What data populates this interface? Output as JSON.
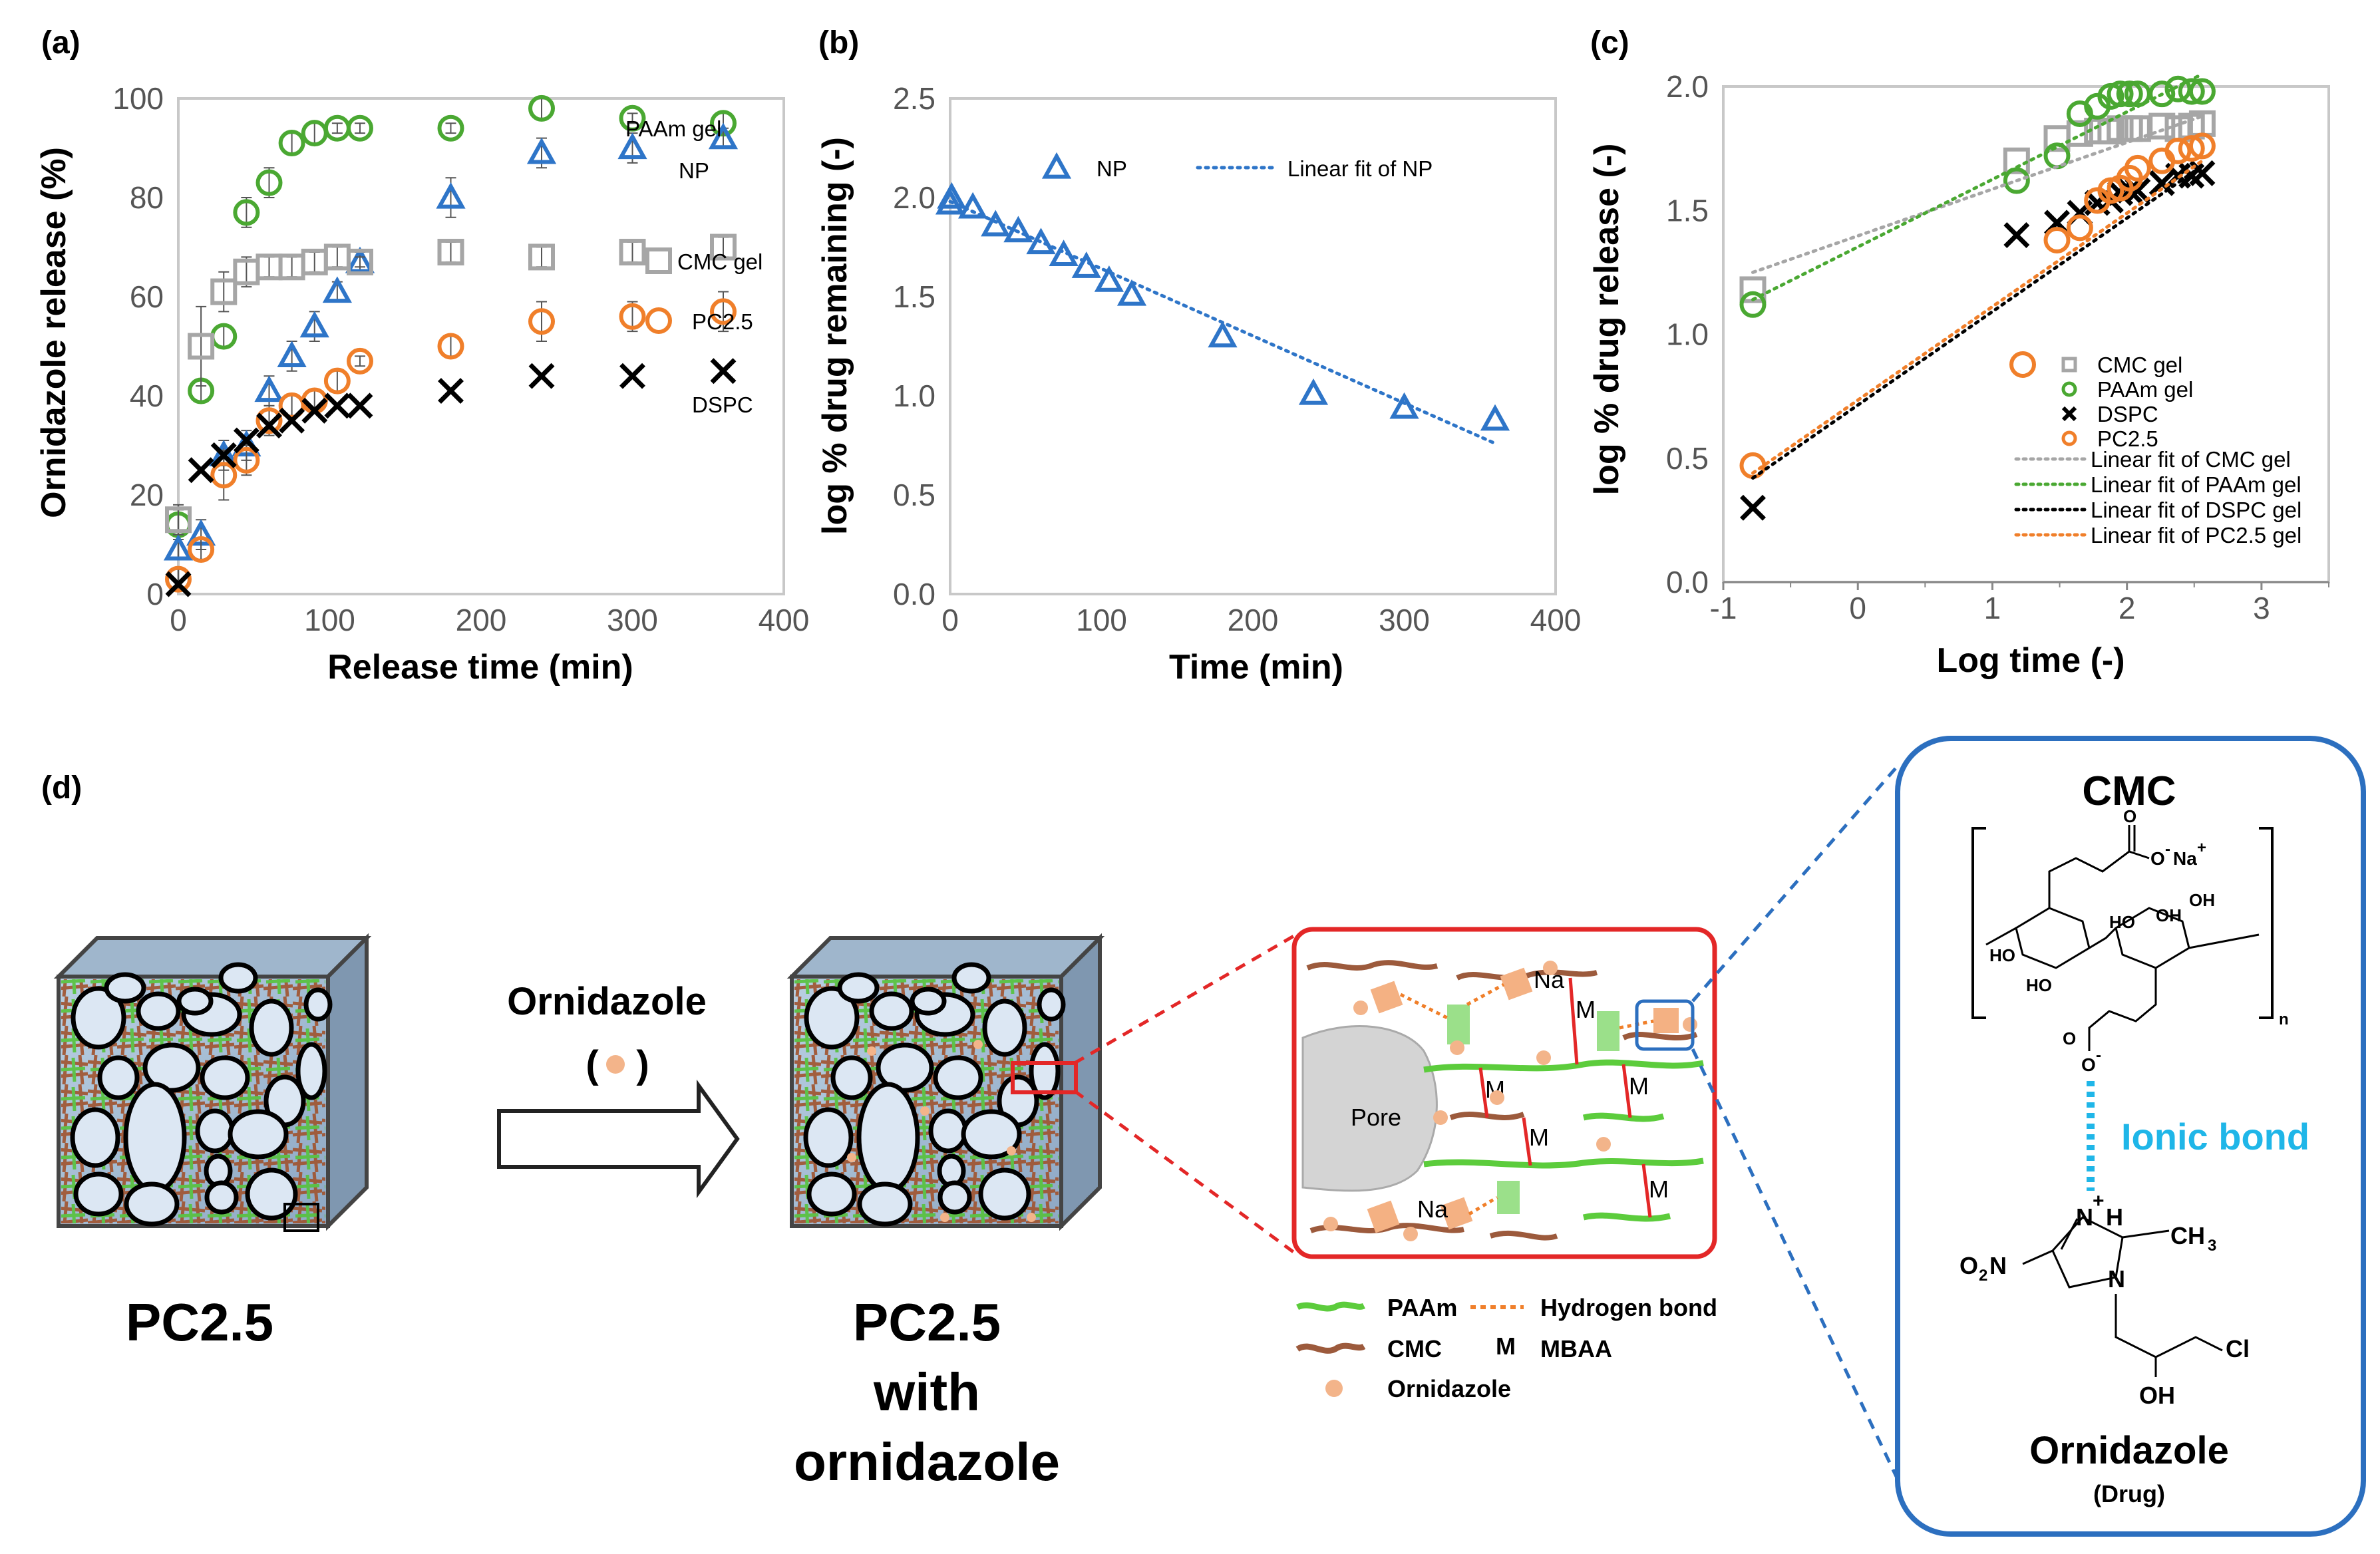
{
  "panels": {
    "a": "(a)",
    "b": "(b)",
    "c": "(c)",
    "d": "(d)"
  },
  "colors": {
    "cmc": "#a6a6a6",
    "paam": "#4aa832",
    "np": "#2e75c8",
    "pc25": "#f07f2a",
    "dspc": "#000000",
    "ionic": "#1fb6e8",
    "frame_red": "#e32727",
    "frame_blue": "#2c6fbf"
  },
  "chart_data": [
    {
      "id": "a",
      "type": "scatter",
      "xlabel": "Release time (min)",
      "ylabel": "Ornidazole release (%)",
      "xlim": [
        0,
        400
      ],
      "ylim": [
        0,
        100
      ],
      "xticks": [
        "0",
        "100",
        "200",
        "300",
        "400"
      ],
      "yticks": [
        "0",
        "20",
        "40",
        "60",
        "80",
        "100"
      ],
      "grid": false,
      "series": [
        {
          "name": "PAAm gel",
          "label": "PAAm gel",
          "marker": "circle",
          "color": "#4aa832",
          "x": [
            0,
            15,
            30,
            45,
            60,
            75,
            90,
            105,
            120,
            180,
            240,
            300,
            360
          ],
          "y": [
            14,
            41,
            52,
            77,
            83,
            91,
            93,
            94,
            94,
            94,
            98,
            96,
            95
          ],
          "err": [
            3,
            2,
            2,
            3,
            3,
            2,
            2,
            1,
            1,
            1,
            2,
            1,
            2
          ]
        },
        {
          "name": "NP",
          "label": "NP",
          "marker": "triangle",
          "color": "#2e75c8",
          "x": [
            0,
            15,
            30,
            45,
            60,
            75,
            90,
            105,
            120,
            180,
            240,
            300,
            360
          ],
          "y": [
            9,
            12,
            28,
            30,
            41,
            48,
            54,
            61,
            67,
            80,
            89,
            90,
            92
          ],
          "err": [
            2,
            3,
            3,
            3,
            3,
            3,
            3,
            2,
            2,
            4,
            3,
            3,
            2
          ]
        },
        {
          "name": "CMC gel",
          "label": "CMC gel",
          "marker": "square",
          "color": "#a6a6a6",
          "x": [
            0,
            15,
            30,
            45,
            60,
            75,
            90,
            105,
            120,
            180,
            240,
            300,
            360
          ],
          "y": [
            15,
            50,
            61,
            65,
            66,
            66,
            67,
            68,
            67,
            69,
            68,
            69,
            70
          ],
          "err": [
            3,
            8,
            4,
            3,
            2,
            2,
            2,
            2,
            1,
            2,
            2,
            2,
            2
          ]
        },
        {
          "name": "PC2.5",
          "label": "PC2.5",
          "marker": "circle",
          "color": "#f07f2a",
          "x": [
            0,
            15,
            30,
            45,
            60,
            75,
            90,
            105,
            120,
            180,
            240,
            300,
            360
          ],
          "y": [
            3,
            9,
            24,
            27,
            35,
            38,
            39,
            43,
            47,
            50,
            55,
            56,
            57
          ],
          "err": [
            2,
            2,
            5,
            3,
            3,
            2,
            2,
            2,
            1,
            2,
            4,
            3,
            4
          ]
        },
        {
          "name": "DSPC",
          "label": "DSPC",
          "marker": "cross",
          "color": "#000000",
          "x": [
            0,
            15,
            30,
            45,
            60,
            75,
            90,
            105,
            120,
            180,
            240,
            300,
            360
          ],
          "y": [
            2,
            25,
            28,
            31,
            34,
            35,
            37,
            38,
            38,
            41,
            44,
            44,
            45
          ],
          "err": [
            0,
            0,
            0,
            0,
            0,
            0,
            0,
            0,
            0,
            0,
            0,
            0,
            0
          ]
        }
      ]
    },
    {
      "id": "b",
      "type": "scatter",
      "xlabel": "Time (min)",
      "ylabel": "log % drug remaining (-)",
      "xlim": [
        0,
        400
      ],
      "ylim": [
        0,
        2.5
      ],
      "xticks": [
        "0",
        "100",
        "200",
        "300",
        "400"
      ],
      "yticks": [
        "0.0",
        "0.5",
        "1.0",
        "1.5",
        "2.0",
        "2.5"
      ],
      "grid": false,
      "legend": [
        "NP",
        "Linear fit of NP"
      ],
      "series": [
        {
          "name": "NP",
          "marker": "triangle",
          "color": "#2e75c8",
          "x": [
            0,
            1,
            15,
            30,
            45,
            60,
            75,
            90,
            105,
            120,
            180,
            240,
            300,
            360
          ],
          "y": [
            1.97,
            2.0,
            1.95,
            1.86,
            1.83,
            1.77,
            1.71,
            1.65,
            1.58,
            1.51,
            1.3,
            1.01,
            0.94,
            0.88
          ]
        },
        {
          "name": "Linear fit of NP",
          "type": "line",
          "style": "dotted",
          "color": "#2e75c8",
          "x": [
            0,
            360
          ],
          "y": [
            1.98,
            0.76
          ]
        }
      ]
    },
    {
      "id": "c",
      "type": "scatter",
      "xlabel": "Log time (-)",
      "ylabel": "log % drug release (-)",
      "xlim": [
        -1,
        3.5
      ],
      "ylim": [
        0,
        2.0
      ],
      "xticks": [
        "-1",
        "0",
        "1",
        "2",
        "3"
      ],
      "yticks": [
        "0.0",
        "0.5",
        "1.0",
        "1.5",
        "2.0"
      ],
      "grid": false,
      "legend": [
        "CMC gel",
        "PAAm gel",
        "DSPC",
        "PC2.5",
        "Linear fit of CMC gel",
        "Linear fit of PAAm gel",
        "Linear fit of DSPC gel",
        "Linear fit of PC2.5 gel"
      ],
      "series": [
        {
          "name": "CMC gel",
          "marker": "square",
          "color": "#a6a6a6",
          "x": [
            -0.78,
            1.18,
            1.48,
            1.65,
            1.78,
            1.88,
            1.95,
            2.02,
            2.08,
            2.26,
            2.38,
            2.48,
            2.56
          ],
          "y": [
            1.18,
            1.7,
            1.79,
            1.81,
            1.82,
            1.82,
            1.83,
            1.83,
            1.83,
            1.84,
            1.83,
            1.84,
            1.85
          ]
        },
        {
          "name": "PAAm gel",
          "marker": "circle",
          "color": "#4aa832",
          "x": [
            -0.78,
            1.18,
            1.48,
            1.65,
            1.78,
            1.88,
            1.95,
            2.02,
            2.08,
            2.26,
            2.38,
            2.48,
            2.56
          ],
          "y": [
            1.12,
            1.62,
            1.72,
            1.89,
            1.92,
            1.96,
            1.97,
            1.97,
            1.97,
            1.97,
            1.99,
            1.98,
            1.98
          ]
        },
        {
          "name": "DSPC",
          "marker": "cross",
          "color": "#000000",
          "x": [
            -0.78,
            1.18,
            1.48,
            1.65,
            1.78,
            1.88,
            1.95,
            2.02,
            2.08,
            2.26,
            2.38,
            2.48,
            2.56
          ],
          "y": [
            0.3,
            1.4,
            1.45,
            1.49,
            1.53,
            1.54,
            1.57,
            1.58,
            1.58,
            1.61,
            1.64,
            1.64,
            1.65
          ]
        },
        {
          "name": "PC2.5",
          "marker": "circle",
          "color": "#f07f2a",
          "x": [
            -0.78,
            1.48,
            1.65,
            1.78,
            1.88,
            1.95,
            2.02,
            2.08,
            2.26,
            2.38,
            2.48,
            2.56
          ],
          "y": [
            0.47,
            1.38,
            1.43,
            1.54,
            1.58,
            1.59,
            1.63,
            1.67,
            1.7,
            1.74,
            1.75,
            1.76
          ]
        },
        {
          "name": "Linear fit of CMC gel",
          "type": "line",
          "style": "dotted",
          "color": "#a6a6a6",
          "x": [
            -0.78,
            2.56
          ],
          "y": [
            1.25,
            1.88
          ]
        },
        {
          "name": "Linear fit of PAAm gel",
          "type": "line",
          "style": "dotted",
          "color": "#4aa832",
          "x": [
            -0.78,
            2.56
          ],
          "y": [
            1.14,
            2.05
          ]
        },
        {
          "name": "Linear fit of DSPC gel",
          "type": "line",
          "style": "dotted",
          "color": "#000000",
          "x": [
            -0.78,
            2.56
          ],
          "y": [
            0.42,
            1.68
          ]
        },
        {
          "name": "Linear fit of PC2.5 gel",
          "type": "line",
          "style": "dotted",
          "color": "#f07f2a",
          "x": [
            -0.78,
            2.56
          ],
          "y": [
            0.44,
            1.7
          ]
        }
      ]
    }
  ],
  "diagram": {
    "cube1_label": "PC2.5",
    "drug_name": "Ornidazole",
    "drug_paren_open": "(",
    "drug_paren_close": ")",
    "cube2_label_line1": "PC2.5",
    "cube2_label_line2": "with",
    "cube2_label_line3": "ornidazole",
    "zoom": {
      "pore": "Pore",
      "m": "M",
      "na": "Na",
      "plus": "+",
      "coo": "C O O",
      "h": "H",
      "n": "N",
      "c": "C",
      "o": "O"
    },
    "legend": {
      "paam": "PAAm",
      "cmc": "CMC",
      "ornidazole": "Ornidazole",
      "hbond": "Hydrogen bond",
      "m_symbol": "M",
      "mbaa": "MBAA"
    },
    "structure": {
      "title": "CMC",
      "o_minus": "O",
      "minus": "-",
      "na": "Na",
      "plus": "+",
      "oh": "OH",
      "ho": "HO",
      "o": "O",
      "n_sub": "n",
      "ionic_bond": "Ionic bond",
      "n_plus": "N",
      "h": "H",
      "n": "N",
      "ch3": "CH",
      "sub3": "3",
      "o2n": "O",
      "o2n_sub": "2",
      "o2n_n": "N",
      "cl": "Cl",
      "drug_title": "Ornidazole",
      "drug_sub": "(Drug)"
    }
  }
}
